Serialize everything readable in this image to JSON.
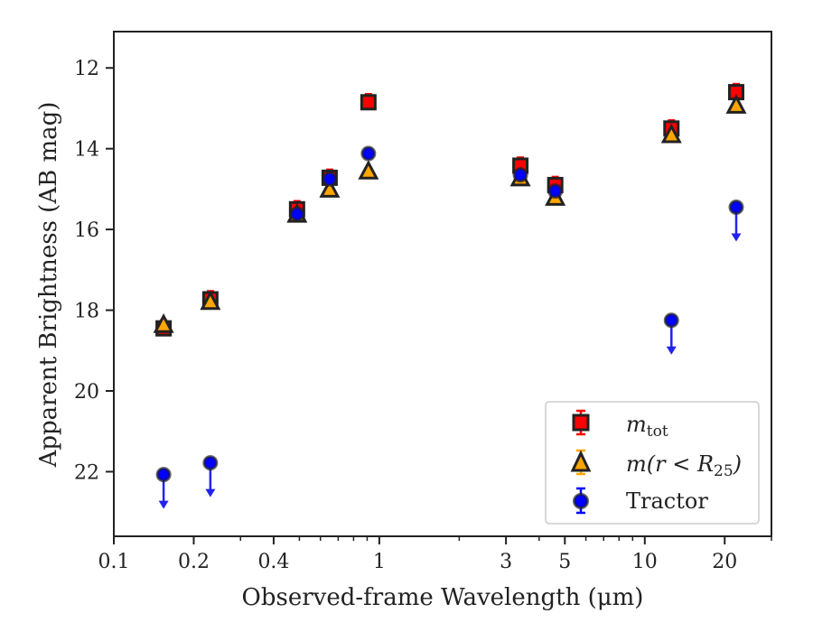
{
  "colors": {
    "mtot": "#ff0000",
    "mr25": "#ffa500",
    "tractor": "#0000ff",
    "edge": "#222222",
    "arrow": "#2222ee"
  },
  "chart_data": {
    "type": "scatter",
    "xlabel": "Observed-frame Wavelength (μm)",
    "ylabel": "Apparent Brightness (AB mag)",
    "xscale": "log",
    "xlim": [
      0.1,
      30
    ],
    "ylim": [
      23.6,
      11.1
    ],
    "y_inverted": true,
    "grid": false,
    "legend_position": "lower-right",
    "xticks": [
      {
        "value": 0.1,
        "label": "0.1"
      },
      {
        "value": 0.2,
        "label": "0.2"
      },
      {
        "value": 0.4,
        "label": "0.4"
      },
      {
        "value": 1,
        "label": "1"
      },
      {
        "value": 3,
        "label": "3"
      },
      {
        "value": 5,
        "label": "5"
      },
      {
        "value": 10,
        "label": "10"
      },
      {
        "value": 20,
        "label": "20"
      }
    ],
    "yticks": [
      {
        "value": 12,
        "label": "12"
      },
      {
        "value": 14,
        "label": "14"
      },
      {
        "value": 16,
        "label": "16"
      },
      {
        "value": 18,
        "label": "18"
      },
      {
        "value": 20,
        "label": "20"
      },
      {
        "value": 22,
        "label": "22"
      }
    ],
    "series": [
      {
        "key": "mtot",
        "name_main": "m",
        "name_sub": "tot",
        "marker": "square",
        "points": [
          {
            "x": 0.154,
            "y": 18.45
          },
          {
            "x": 0.231,
            "y": 17.73
          },
          {
            "x": 0.49,
            "y": 15.5
          },
          {
            "x": 0.65,
            "y": 14.72
          },
          {
            "x": 0.91,
            "y": 12.85
          },
          {
            "x": 3.4,
            "y": 14.42
          },
          {
            "x": 4.6,
            "y": 14.9
          },
          {
            "x": 12.6,
            "y": 13.5
          },
          {
            "x": 22.1,
            "y": 12.6
          }
        ]
      },
      {
        "key": "mr25",
        "name_main": "m(r < R",
        "name_sub": "25",
        "name_end": ")",
        "marker": "triangle",
        "points": [
          {
            "x": 0.154,
            "y": 18.35
          },
          {
            "x": 0.231,
            "y": 17.78
          },
          {
            "x": 0.49,
            "y": 15.62
          },
          {
            "x": 0.65,
            "y": 15.0
          },
          {
            "x": 0.91,
            "y": 14.55
          },
          {
            "x": 3.4,
            "y": 14.72
          },
          {
            "x": 4.6,
            "y": 15.2
          },
          {
            "x": 12.6,
            "y": 13.65
          },
          {
            "x": 22.1,
            "y": 12.92
          }
        ]
      },
      {
        "key": "tractor",
        "name": "Tractor",
        "marker": "circle",
        "points": [
          {
            "x": 0.154,
            "y": 22.07,
            "upper_limit": true
          },
          {
            "x": 0.231,
            "y": 21.78,
            "upper_limit": true
          },
          {
            "x": 0.49,
            "y": 15.62
          },
          {
            "x": 0.65,
            "y": 14.75
          },
          {
            "x": 0.91,
            "y": 14.12
          },
          {
            "x": 3.4,
            "y": 14.65
          },
          {
            "x": 4.6,
            "y": 15.05
          },
          {
            "x": 12.6,
            "y": 18.25,
            "upper_limit": true
          },
          {
            "x": 22.1,
            "y": 15.45,
            "upper_limit": true
          }
        ]
      }
    ]
  }
}
